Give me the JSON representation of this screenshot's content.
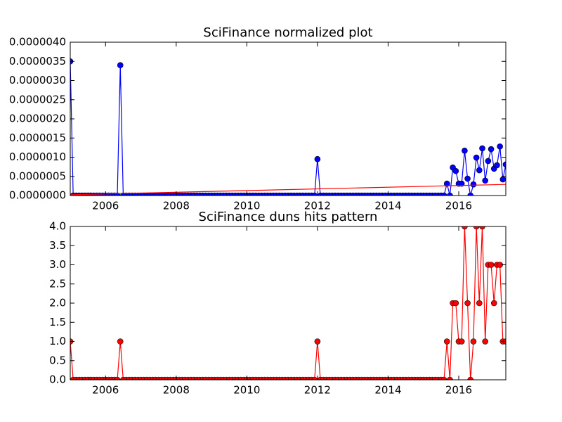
{
  "chart_data": [
    {
      "type": "line",
      "title": "SciFinance normalized plot",
      "x": [
        2005,
        2005.083,
        2005.167,
        2005.25,
        2005.333,
        2005.417,
        2005.5,
        2005.583,
        2005.667,
        2005.75,
        2005.833,
        2005.917,
        2006,
        2006.083,
        2006.167,
        2006.25,
        2006.333,
        2006.417,
        2006.5,
        2006.583,
        2006.667,
        2006.75,
        2006.833,
        2006.917,
        2007,
        2007.083,
        2007.167,
        2007.25,
        2007.333,
        2007.417,
        2007.5,
        2007.583,
        2007.667,
        2007.75,
        2007.833,
        2007.917,
        2008,
        2008.083,
        2008.167,
        2008.25,
        2008.333,
        2008.417,
        2008.5,
        2008.583,
        2008.667,
        2008.75,
        2008.833,
        2008.917,
        2009,
        2009.083,
        2009.167,
        2009.25,
        2009.333,
        2009.417,
        2009.5,
        2009.583,
        2009.667,
        2009.75,
        2009.833,
        2009.917,
        2010,
        2010.083,
        2010.167,
        2010.25,
        2010.333,
        2010.417,
        2010.5,
        2010.583,
        2010.667,
        2010.75,
        2010.833,
        2010.917,
        2011,
        2011.083,
        2011.167,
        2011.25,
        2011.333,
        2011.417,
        2011.5,
        2011.583,
        2011.667,
        2011.75,
        2011.833,
        2011.917,
        2012,
        2012.083,
        2012.167,
        2012.25,
        2012.333,
        2012.417,
        2012.5,
        2012.583,
        2012.667,
        2012.75,
        2012.833,
        2012.917,
        2013,
        2013.083,
        2013.167,
        2013.25,
        2013.333,
        2013.417,
        2013.5,
        2013.583,
        2013.667,
        2013.75,
        2013.833,
        2013.917,
        2014,
        2014.083,
        2014.167,
        2014.25,
        2014.333,
        2014.417,
        2014.5,
        2014.583,
        2014.667,
        2014.75,
        2014.833,
        2014.917,
        2015,
        2015.083,
        2015.167,
        2015.25,
        2015.333,
        2015.417,
        2015.5,
        2015.583,
        2015.667,
        2015.75,
        2015.833,
        2015.917,
        2016,
        2016.083,
        2016.167,
        2016.25,
        2016.333,
        2016.417,
        2016.5,
        2016.583,
        2016.667,
        2016.75,
        2016.833,
        2016.917,
        2017,
        2017.083,
        2017.167,
        2017.25,
        2017.333
      ],
      "series": [
        {
          "color": "#0000ff",
          "values": [
            3.5e-06,
            0,
            0,
            0,
            0,
            0,
            0,
            0,
            0,
            0,
            0,
            0,
            0,
            0,
            0,
            0,
            0,
            3.4e-06,
            0,
            0,
            0,
            0,
            0,
            0,
            0,
            0,
            0,
            0,
            0,
            0,
            0,
            0,
            0,
            0,
            0,
            0,
            0,
            0,
            0,
            0,
            0,
            0,
            0,
            0,
            0,
            0,
            0,
            0,
            0,
            0,
            0,
            0,
            0,
            0,
            0,
            0,
            0,
            0,
            0,
            0,
            0,
            0,
            0,
            0,
            0,
            0,
            0,
            0,
            0,
            0,
            0,
            0,
            0,
            0,
            0,
            0,
            0,
            0,
            0,
            0,
            0,
            0,
            0,
            0,
            9.5e-07,
            0,
            0,
            0,
            0,
            0,
            0,
            0,
            0,
            0,
            0,
            0,
            0,
            0,
            0,
            0,
            0,
            0,
            0,
            0,
            0,
            0,
            0,
            0,
            0,
            0,
            0,
            0,
            0,
            0,
            0,
            0,
            0,
            0,
            0,
            0,
            0,
            0,
            0,
            0,
            0,
            0,
            0,
            0,
            3.1e-07,
            0,
            7.3e-07,
            6.4e-07,
            3.1e-07,
            3.1e-07,
            1.17e-06,
            4.4e-07,
            0,
            2.9e-07,
            9.9e-07,
            6.6e-07,
            1.23e-06,
            3.9e-07,
            9e-07,
            1.21e-06,
            7e-07,
            7.9e-07,
            1.28e-06,
            4.2e-07,
            8.1e-07
          ]
        }
      ],
      "trend": {
        "color": "#ff0000",
        "x": [
          2005,
          2017.333
        ],
        "values": [
          2e-08,
          2.9e-07
        ]
      },
      "xlim": [
        2005,
        2017.333
      ],
      "xticks": [
        2006,
        2008,
        2010,
        2012,
        2014,
        2016
      ],
      "ylim": [
        0,
        4e-06
      ],
      "yticks": [
        {
          "value": 0,
          "label": "0.0000000"
        },
        {
          "value": 5e-07,
          "label": "0.0000005"
        },
        {
          "value": 1e-06,
          "label": "0.0000010"
        },
        {
          "value": 1.5e-06,
          "label": "0.0000015"
        },
        {
          "value": 2e-06,
          "label": "0.0000020"
        },
        {
          "value": 2.5e-06,
          "label": "0.0000025"
        },
        {
          "value": 3e-06,
          "label": "0.0000030"
        },
        {
          "value": 3.5e-06,
          "label": "0.0000035"
        },
        {
          "value": 4e-06,
          "label": "0.0000040"
        }
      ]
    },
    {
      "type": "line",
      "title": "SciFinance duns hits pattern",
      "x": [
        2005,
        2005.083,
        2005.167,
        2005.25,
        2005.333,
        2005.417,
        2005.5,
        2005.583,
        2005.667,
        2005.75,
        2005.833,
        2005.917,
        2006,
        2006.083,
        2006.167,
        2006.25,
        2006.333,
        2006.417,
        2006.5,
        2006.583,
        2006.667,
        2006.75,
        2006.833,
        2006.917,
        2007,
        2007.083,
        2007.167,
        2007.25,
        2007.333,
        2007.417,
        2007.5,
        2007.583,
        2007.667,
        2007.75,
        2007.833,
        2007.917,
        2008,
        2008.083,
        2008.167,
        2008.25,
        2008.333,
        2008.417,
        2008.5,
        2008.583,
        2008.667,
        2008.75,
        2008.833,
        2008.917,
        2009,
        2009.083,
        2009.167,
        2009.25,
        2009.333,
        2009.417,
        2009.5,
        2009.583,
        2009.667,
        2009.75,
        2009.833,
        2009.917,
        2010,
        2010.083,
        2010.167,
        2010.25,
        2010.333,
        2010.417,
        2010.5,
        2010.583,
        2010.667,
        2010.75,
        2010.833,
        2010.917,
        2011,
        2011.083,
        2011.167,
        2011.25,
        2011.333,
        2011.417,
        2011.5,
        2011.583,
        2011.667,
        2011.75,
        2011.833,
        2011.917,
        2012,
        2012.083,
        2012.167,
        2012.25,
        2012.333,
        2012.417,
        2012.5,
        2012.583,
        2012.667,
        2012.75,
        2012.833,
        2012.917,
        2013,
        2013.083,
        2013.167,
        2013.25,
        2013.333,
        2013.417,
        2013.5,
        2013.583,
        2013.667,
        2013.75,
        2013.833,
        2013.917,
        2014,
        2014.083,
        2014.167,
        2014.25,
        2014.333,
        2014.417,
        2014.5,
        2014.583,
        2014.667,
        2014.75,
        2014.833,
        2014.917,
        2015,
        2015.083,
        2015.167,
        2015.25,
        2015.333,
        2015.417,
        2015.5,
        2015.583,
        2015.667,
        2015.75,
        2015.833,
        2015.917,
        2016,
        2016.083,
        2016.167,
        2016.25,
        2016.333,
        2016.417,
        2016.5,
        2016.583,
        2016.667,
        2016.75,
        2016.833,
        2016.917,
        2017,
        2017.083,
        2017.167,
        2017.25,
        2017.333
      ],
      "series": [
        {
          "color": "#ff0000",
          "values": [
            1,
            0,
            0,
            0,
            0,
            0,
            0,
            0,
            0,
            0,
            0,
            0,
            0,
            0,
            0,
            0,
            0,
            1,
            0,
            0,
            0,
            0,
            0,
            0,
            0,
            0,
            0,
            0,
            0,
            0,
            0,
            0,
            0,
            0,
            0,
            0,
            0,
            0,
            0,
            0,
            0,
            0,
            0,
            0,
            0,
            0,
            0,
            0,
            0,
            0,
            0,
            0,
            0,
            0,
            0,
            0,
            0,
            0,
            0,
            0,
            0,
            0,
            0,
            0,
            0,
            0,
            0,
            0,
            0,
            0,
            0,
            0,
            0,
            0,
            0,
            0,
            0,
            0,
            0,
            0,
            0,
            0,
            0,
            0,
            1,
            0,
            0,
            0,
            0,
            0,
            0,
            0,
            0,
            0,
            0,
            0,
            0,
            0,
            0,
            0,
            0,
            0,
            0,
            0,
            0,
            0,
            0,
            0,
            0,
            0,
            0,
            0,
            0,
            0,
            0,
            0,
            0,
            0,
            0,
            0,
            0,
            0,
            0,
            0,
            0,
            0,
            0,
            0,
            1,
            0,
            2,
            2,
            1,
            1,
            4,
            2,
            0,
            1,
            4,
            2,
            4,
            1,
            3,
            3,
            2,
            3,
            3,
            1,
            1
          ]
        }
      ],
      "xlim": [
        2005,
        2017.333
      ],
      "xticks": [
        2006,
        2008,
        2010,
        2012,
        2014,
        2016
      ],
      "ylim": [
        0,
        4
      ],
      "yticks": [
        {
          "value": 0,
          "label": "0.0"
        },
        {
          "value": 0.5,
          "label": "0.5"
        },
        {
          "value": 1,
          "label": "1.0"
        },
        {
          "value": 1.5,
          "label": "1.5"
        },
        {
          "value": 2,
          "label": "2.0"
        },
        {
          "value": 2.5,
          "label": "2.5"
        },
        {
          "value": 3,
          "label": "3.0"
        },
        {
          "value": 3.5,
          "label": "3.5"
        },
        {
          "value": 4,
          "label": "4.0"
        }
      ]
    }
  ]
}
